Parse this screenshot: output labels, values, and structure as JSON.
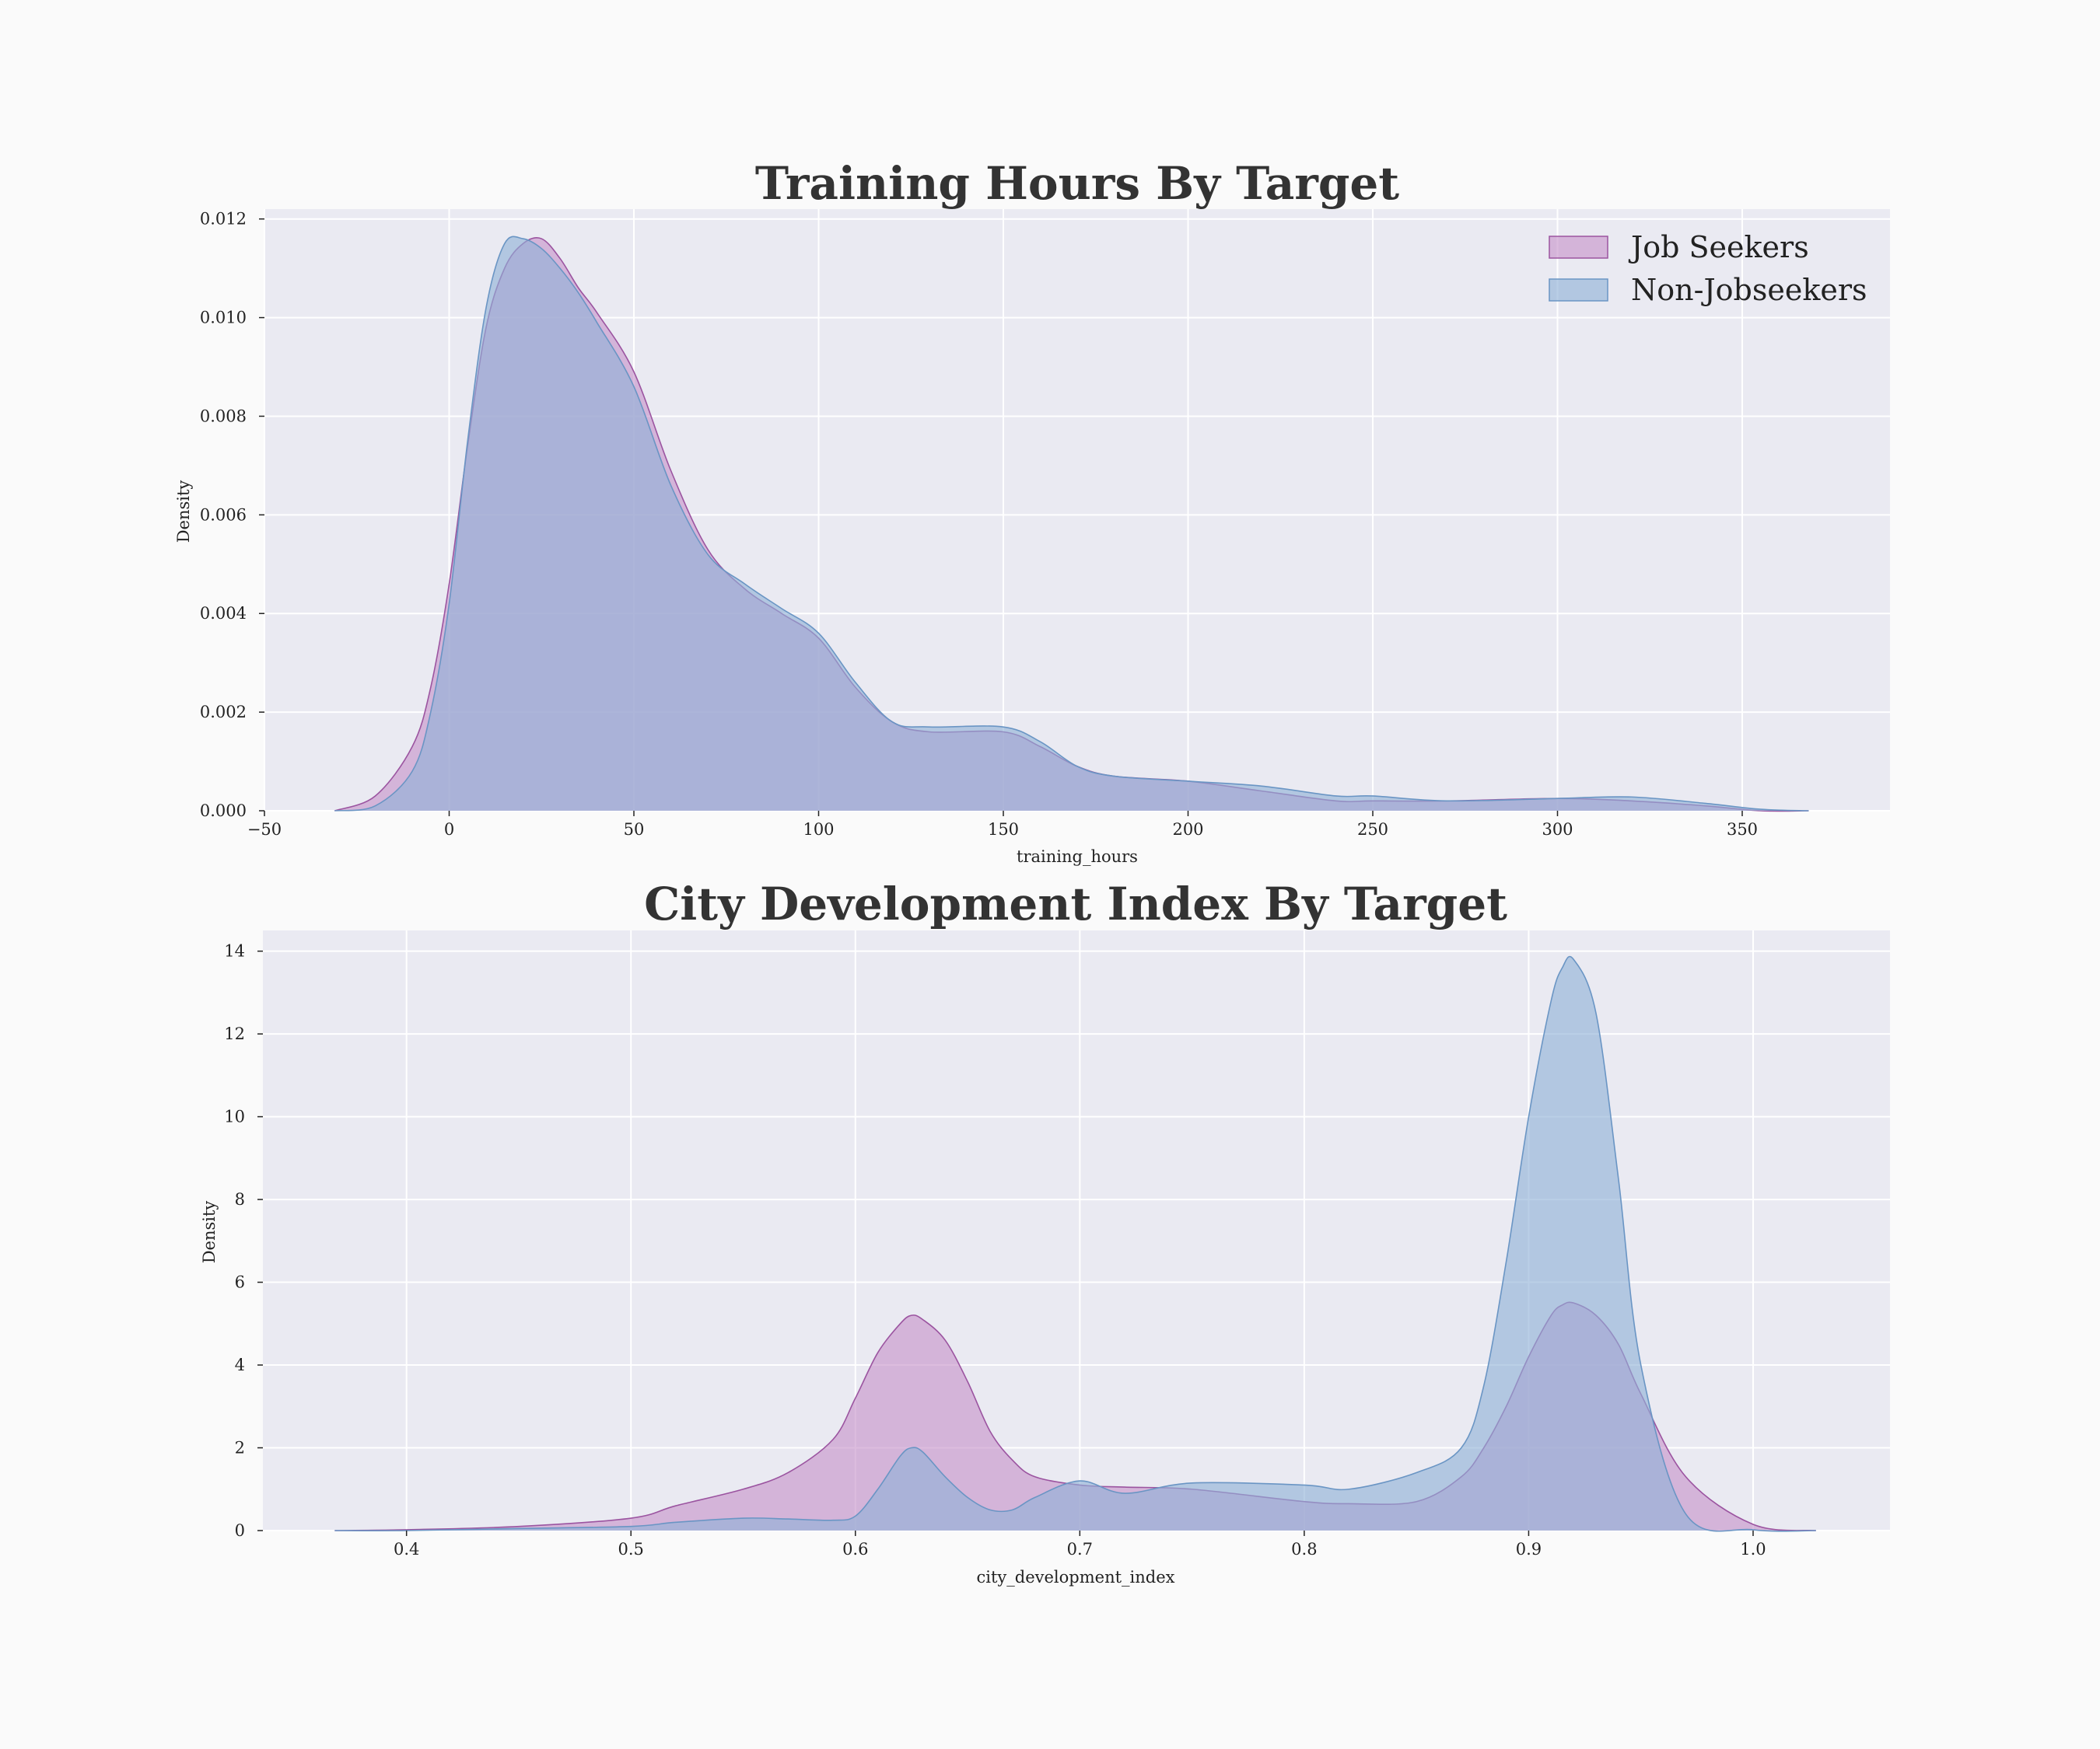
{
  "colors": {
    "background": "#fafafa",
    "plot_background": "#eaeaf2",
    "grid": "#ffffff",
    "job_seekers_fill": "#c693c9",
    "job_seekers_edge": "#9b54a0",
    "non_jobseekers_fill": "#8fb1d6",
    "non_jobseekers_edge": "#6a95c4"
  },
  "chart_data": [
    {
      "type": "area",
      "title": "Training Hours By Target",
      "xlabel": "training_hours",
      "ylabel": "Density",
      "xlim": [
        -50,
        390
      ],
      "ylim": [
        0,
        0.0122
      ],
      "xticks": [
        -50,
        0,
        50,
        100,
        150,
        200,
        250,
        300,
        350
      ],
      "xtick_labels": [
        "−50",
        "0",
        "50",
        "100",
        "150",
        "200",
        "250",
        "300",
        "350"
      ],
      "yticks": [
        0,
        0.002,
        0.004,
        0.006,
        0.008,
        0.01,
        0.012
      ],
      "ytick_labels": [
        "0.000",
        "0.002",
        "0.004",
        "0.006",
        "0.008",
        "0.010",
        "0.012"
      ],
      "grid": true,
      "legend": "top-right",
      "series": [
        {
          "name": "Job Seekers",
          "x": [
            -31,
            -20,
            -10,
            -5,
            0,
            5,
            10,
            15,
            20,
            25,
            30,
            35,
            40,
            50,
            60,
            70,
            80,
            90,
            100,
            110,
            120,
            130,
            150,
            160,
            170,
            180,
            200,
            220,
            240,
            250,
            270,
            300,
            320,
            340,
            355,
            368
          ],
          "y": [
            0.0,
            0.0003,
            0.0013,
            0.0025,
            0.0046,
            0.0074,
            0.0098,
            0.011,
            0.0115,
            0.0116,
            0.0112,
            0.0106,
            0.0101,
            0.0089,
            0.0069,
            0.0053,
            0.0045,
            0.004,
            0.0035,
            0.0025,
            0.0018,
            0.0016,
            0.0016,
            0.0013,
            0.0009,
            0.0007,
            0.0006,
            0.0004,
            0.0002,
            0.0002,
            0.0002,
            0.00025,
            0.0002,
            0.0001,
            0.0,
            0.0
          ]
        },
        {
          "name": "Non-Jobseekers",
          "x": [
            -31,
            -20,
            -10,
            -5,
            0,
            5,
            10,
            15,
            20,
            25,
            30,
            35,
            40,
            50,
            60,
            70,
            80,
            90,
            100,
            110,
            120,
            130,
            150,
            160,
            170,
            180,
            200,
            220,
            240,
            250,
            270,
            300,
            320,
            340,
            355,
            368
          ],
          "y": [
            0.0,
            0.0001,
            0.0008,
            0.002,
            0.0042,
            0.0075,
            0.0102,
            0.0115,
            0.0116,
            0.0114,
            0.011,
            0.0105,
            0.0099,
            0.0086,
            0.0066,
            0.0052,
            0.0046,
            0.0041,
            0.0036,
            0.0026,
            0.0018,
            0.0017,
            0.0017,
            0.0014,
            0.0009,
            0.0007,
            0.0006,
            0.0005,
            0.0003,
            0.0003,
            0.0002,
            0.00025,
            0.00028,
            0.00015,
            3e-05,
            0.0
          ]
        }
      ]
    },
    {
      "type": "area",
      "title": "City Development Index By Target",
      "xlabel": "city_development_index",
      "ylabel": "Density",
      "xlim": [
        0.336,
        1.061
      ],
      "ylim": [
        0,
        14.5
      ],
      "xticks": [
        0.4,
        0.5,
        0.6,
        0.7,
        0.8,
        0.9,
        1.0
      ],
      "xtick_labels": [
        "0.4",
        "0.5",
        "0.6",
        "0.7",
        "0.8",
        "0.9",
        "1.0"
      ],
      "yticks": [
        0,
        2,
        4,
        6,
        8,
        10,
        12,
        14
      ],
      "ytick_labels": [
        "0",
        "2",
        "4",
        "6",
        "8",
        "10",
        "12",
        "14"
      ],
      "grid": true,
      "legend": "none",
      "series": [
        {
          "name": "Job Seekers",
          "x": [
            0.368,
            0.4,
            0.45,
            0.5,
            0.52,
            0.55,
            0.57,
            0.59,
            0.6,
            0.61,
            0.62,
            0.625,
            0.63,
            0.64,
            0.65,
            0.66,
            0.67,
            0.68,
            0.7,
            0.72,
            0.75,
            0.8,
            0.82,
            0.85,
            0.87,
            0.88,
            0.89,
            0.9,
            0.91,
            0.915,
            0.92,
            0.93,
            0.94,
            0.95,
            0.97,
            1.0,
            1.028
          ],
          "y": [
            0.0,
            0.02,
            0.1,
            0.3,
            0.6,
            1.0,
            1.4,
            2.2,
            3.2,
            4.3,
            5.0,
            5.2,
            5.1,
            4.6,
            3.6,
            2.4,
            1.7,
            1.3,
            1.1,
            1.05,
            1.0,
            0.7,
            0.65,
            0.7,
            1.3,
            2.0,
            3.0,
            4.2,
            5.2,
            5.45,
            5.5,
            5.2,
            4.5,
            3.3,
            1.3,
            0.15,
            0.0
          ]
        },
        {
          "name": "Non-Jobseekers",
          "x": [
            0.368,
            0.4,
            0.45,
            0.5,
            0.52,
            0.55,
            0.57,
            0.59,
            0.6,
            0.61,
            0.62,
            0.625,
            0.63,
            0.64,
            0.65,
            0.66,
            0.67,
            0.68,
            0.7,
            0.72,
            0.75,
            0.8,
            0.82,
            0.85,
            0.87,
            0.88,
            0.89,
            0.9,
            0.91,
            0.915,
            0.92,
            0.93,
            0.94,
            0.95,
            0.97,
            1.0,
            1.028
          ],
          "y": [
            0.0,
            0.0,
            0.05,
            0.1,
            0.2,
            0.3,
            0.28,
            0.25,
            0.35,
            1.0,
            1.8,
            2.0,
            1.9,
            1.3,
            0.8,
            0.5,
            0.5,
            0.8,
            1.2,
            0.9,
            1.15,
            1.1,
            1.0,
            1.4,
            2.0,
            3.5,
            6.5,
            10.0,
            12.8,
            13.6,
            13.8,
            12.5,
            8.5,
            4.0,
            0.4,
            0.02,
            0.0
          ]
        }
      ]
    }
  ]
}
